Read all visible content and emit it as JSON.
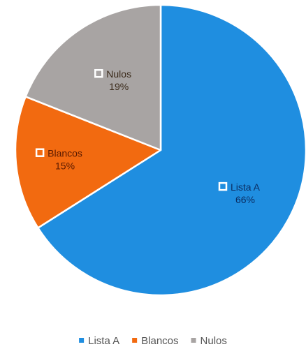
{
  "chart_data": {
    "type": "pie",
    "title": "",
    "categories": [
      "Lista A",
      "Blancos",
      "Nulos"
    ],
    "values": [
      66,
      15,
      19
    ],
    "labels": [
      "66%",
      "15%",
      "19%"
    ],
    "colors": [
      "#1f8ee0",
      "#f26a10",
      "#a8a4a3"
    ],
    "label_colors": [
      "#0b2e63",
      "#5a1a00",
      "#3a2a1a"
    ],
    "start_angle_deg": 0,
    "direction": "clockwise",
    "legend": {
      "position": "bottom",
      "entries": [
        "Lista A",
        "Blancos",
        "Nulos"
      ]
    }
  }
}
